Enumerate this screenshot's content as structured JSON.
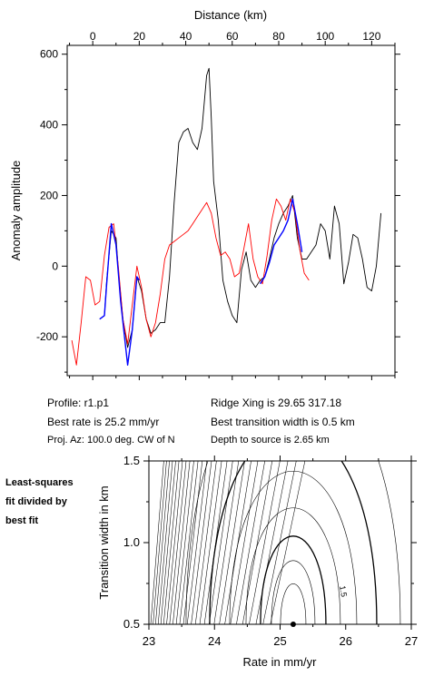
{
  "chart_data": [
    {
      "type": "line",
      "title": "",
      "xlabel": "Distance (km)",
      "ylabel": "Anomaly amplitude",
      "xlim": [
        -11,
        130
      ],
      "ylim": [
        -310,
        625
      ],
      "x_ticks": [
        0,
        20,
        40,
        60,
        80,
        100,
        120
      ],
      "y_ticks": [
        -200,
        0,
        200,
        400,
        600
      ],
      "grid": false,
      "series": [
        {
          "color": "#000000",
          "points": [
            [
              3,
              -150
            ],
            [
              5,
              -140
            ],
            [
              6,
              -40
            ],
            [
              8,
              100
            ],
            [
              10,
              80
            ],
            [
              11,
              -10
            ],
            [
              13,
              -150
            ],
            [
              15,
              -230
            ],
            [
              17,
              -180
            ],
            [
              19,
              -30
            ],
            [
              21,
              -70
            ],
            [
              23,
              -150
            ],
            [
              25,
              -190
            ],
            [
              27,
              -180
            ],
            [
              29,
              -160
            ],
            [
              31,
              -160
            ],
            [
              33,
              -30
            ],
            [
              35,
              180
            ],
            [
              37,
              350
            ],
            [
              39,
              380
            ],
            [
              41,
              390
            ],
            [
              43,
              350
            ],
            [
              45,
              330
            ],
            [
              47,
              390
            ],
            [
              49,
              540
            ],
            [
              50,
              560
            ],
            [
              51,
              420
            ],
            [
              52,
              240
            ],
            [
              54,
              130
            ],
            [
              56,
              -40
            ],
            [
              58,
              -100
            ],
            [
              60,
              -140
            ],
            [
              62,
              -160
            ],
            [
              64,
              -10
            ],
            [
              66,
              40
            ],
            [
              68,
              -40
            ],
            [
              70,
              -60
            ],
            [
              72,
              -40
            ],
            [
              74,
              -30
            ],
            [
              76,
              20
            ],
            [
              78,
              80
            ],
            [
              80,
              120
            ],
            [
              82,
              150
            ],
            [
              84,
              170
            ],
            [
              86,
              200
            ],
            [
              88,
              80
            ],
            [
              90,
              20
            ],
            [
              92,
              20
            ],
            [
              94,
              40
            ],
            [
              96,
              60
            ],
            [
              98,
              120
            ],
            [
              100,
              100
            ],
            [
              102,
              20
            ],
            [
              104,
              170
            ],
            [
              106,
              120
            ],
            [
              108,
              -50
            ],
            [
              110,
              10
            ],
            [
              112,
              90
            ],
            [
              114,
              80
            ],
            [
              116,
              20
            ],
            [
              118,
              -60
            ],
            [
              120,
              -70
            ],
            [
              122,
              0
            ],
            [
              124,
              150
            ]
          ]
        },
        {
          "color": "#ff0000",
          "points": [
            [
              -9,
              -210
            ],
            [
              -7,
              -280
            ],
            [
              -5,
              -160
            ],
            [
              -3,
              -30
            ],
            [
              -1,
              -40
            ],
            [
              1,
              -110
            ],
            [
              3,
              -100
            ],
            [
              5,
              30
            ],
            [
              7,
              110
            ],
            [
              9,
              120
            ],
            [
              11,
              0
            ],
            [
              13,
              -150
            ],
            [
              15,
              -220
            ],
            [
              17,
              -110
            ],
            [
              19,
              0
            ],
            [
              21,
              -60
            ],
            [
              23,
              -150
            ],
            [
              25,
              -200
            ],
            [
              27,
              -160
            ],
            [
              29,
              -80
            ],
            [
              31,
              20
            ],
            [
              33,
              60
            ],
            [
              35,
              70
            ],
            [
              37,
              80
            ],
            [
              39,
              90
            ],
            [
              41,
              100
            ],
            [
              43,
              120
            ],
            [
              45,
              140
            ],
            [
              47,
              160
            ],
            [
              49,
              180
            ],
            [
              51,
              150
            ],
            [
              53,
              80
            ],
            [
              55,
              30
            ],
            [
              57,
              40
            ],
            [
              59,
              20
            ],
            [
              61,
              -30
            ],
            [
              63,
              -20
            ],
            [
              65,
              50
            ],
            [
              67,
              120
            ],
            [
              69,
              20
            ],
            [
              71,
              -30
            ],
            [
              73,
              -50
            ],
            [
              75,
              30
            ],
            [
              77,
              130
            ],
            [
              79,
              190
            ],
            [
              81,
              170
            ],
            [
              83,
              130
            ],
            [
              85,
              190
            ],
            [
              87,
              150
            ],
            [
              89,
              50
            ],
            [
              91,
              -20
            ],
            [
              93,
              -40
            ]
          ]
        },
        {
          "color": "#0000ff",
          "points": [
            [
              3,
              -150
            ],
            [
              5,
              -140
            ],
            [
              6,
              -50
            ],
            [
              8,
              120
            ],
            [
              10,
              60
            ],
            [
              12,
              -100
            ],
            [
              14,
              -220
            ],
            [
              15,
              -280
            ],
            [
              17,
              -180
            ],
            [
              19,
              -30
            ],
            [
              20,
              -40
            ]
          ]
        },
        {
          "color": "#0000ff",
          "points": [
            [
              72,
              -50
            ],
            [
              74,
              -30
            ],
            [
              76,
              10
            ],
            [
              78,
              60
            ],
            [
              80,
              80
            ],
            [
              82,
              100
            ],
            [
              84,
              130
            ],
            [
              86,
              190
            ],
            [
              88,
              120
            ],
            [
              90,
              40
            ]
          ]
        }
      ]
    },
    {
      "type": "contour",
      "title": "",
      "xlabel": "Rate in mm/yr",
      "ylabel": "Transition width in km",
      "xlim": [
        23,
        27
      ],
      "ylim": [
        0.5,
        1.5
      ],
      "x_ticks": [
        23,
        24,
        25,
        26,
        27
      ],
      "y_ticks": [
        0.5,
        1.0,
        1.5
      ],
      "contour_label": "1.5",
      "best_fit_point": {
        "rate": 25.2,
        "width": 0.5
      }
    }
  ],
  "info": {
    "profile": "Profile: r1.p1",
    "ridge_xing": "Ridge Xing is 29.65 317.18",
    "best_rate": "Best rate is 25.2 mm/yr",
    "best_transition": "Best transition width is 0.5 km",
    "proj_az": "Proj. Az: 100.0 deg. CW of N",
    "depth": "Depth to source is   2.65 km"
  },
  "side_label": {
    "line1": "Least-squares",
    "line2": "fit divided by",
    "line3": "best fit"
  }
}
